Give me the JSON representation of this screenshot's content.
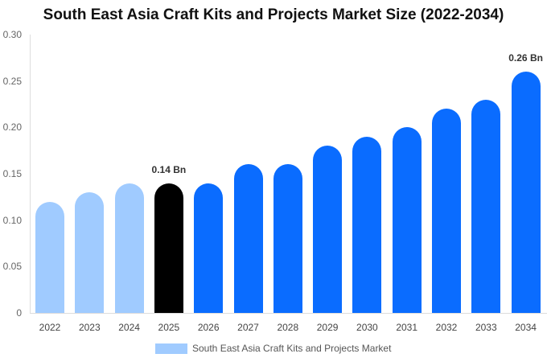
{
  "chart_data": {
    "type": "bar",
    "title": "South East Asia Craft Kits and Projects Market Size (2022-2034)",
    "xlabel": "",
    "ylabel": "",
    "ylim": [
      0,
      0.3
    ],
    "yticks": [
      "0",
      "0.05",
      "0.10",
      "0.15",
      "0.20",
      "0.25",
      "0.30"
    ],
    "categories": [
      "2022",
      "2023",
      "2024",
      "2025",
      "2026",
      "2027",
      "2028",
      "2029",
      "2030",
      "2031",
      "2032",
      "2033",
      "2034"
    ],
    "values": [
      0.12,
      0.13,
      0.14,
      0.14,
      0.14,
      0.16,
      0.16,
      0.18,
      0.19,
      0.2,
      0.22,
      0.23,
      0.26
    ],
    "bar_colors": [
      "#a0cbff",
      "#a0cbff",
      "#a0cbff",
      "#000000",
      "#0a6cff",
      "#0a6cff",
      "#0a6cff",
      "#0a6cff",
      "#0a6cff",
      "#0a6cff",
      "#0a6cff",
      "#0a6cff",
      "#0a6cff"
    ],
    "annotations": [
      {
        "category": "2025",
        "text": "0.14 Bn"
      },
      {
        "category": "2034",
        "text": "0.26 Bn"
      }
    ],
    "legend": [
      {
        "label": "South East Asia Craft Kits and Projects Market",
        "color": "#a0cbff"
      }
    ],
    "legend_position": "bottom",
    "grid": false
  }
}
